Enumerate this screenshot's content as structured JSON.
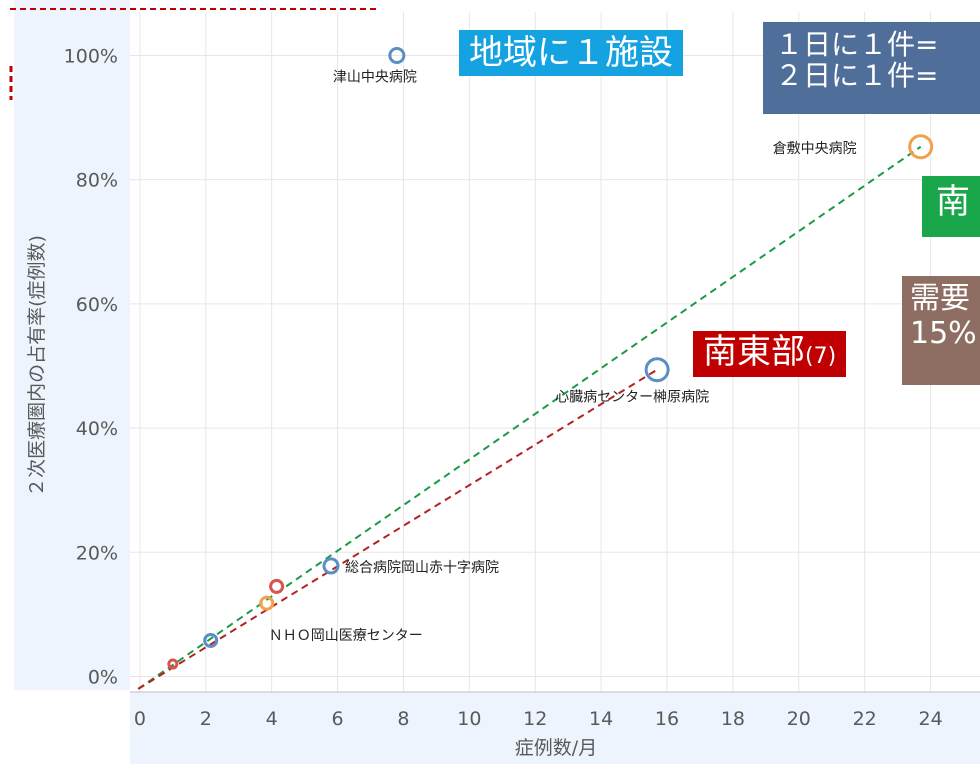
{
  "chart_data": {
    "type": "scatter",
    "xlabel": "症例数/月",
    "ylabel": "２次医療圏内の占有率(症例数)",
    "xlim": [
      -0.3,
      25.5
    ],
    "ylim": [
      -0.025,
      1.07
    ],
    "x_ticks": [
      "0",
      "2",
      "4",
      "6",
      "8",
      "10",
      "12",
      "14",
      "16",
      "18",
      "20",
      "22",
      "24"
    ],
    "y_ticks": [
      "0%",
      "20%",
      "40%",
      "60%",
      "80%",
      "100%"
    ],
    "grid": true,
    "points": [
      {
        "x": 7.8,
        "y": 1.0,
        "size": 7,
        "color": "#5b8ec4",
        "label": "津山中央病院"
      },
      {
        "x": 23.7,
        "y": 0.853,
        "size": 11,
        "color": "#f2a04a",
        "label": "倉敷中央病院"
      },
      {
        "x": 15.7,
        "y": 0.494,
        "size": 11,
        "color": "#5b8ec4",
        "label": "心臓病センター榊原病院"
      },
      {
        "x": 5.8,
        "y": 0.178,
        "size": 7,
        "color": "#5b8ec4",
        "label": "総合病院岡山赤十字病院"
      },
      {
        "x": 3.85,
        "y": 0.118,
        "size": 6,
        "color": "#f2a04a",
        "label": "ＮＨＯ岡山医療センター"
      },
      {
        "x": 4.15,
        "y": 0.145,
        "size": 6,
        "color": "#d9534f",
        "label": ""
      },
      {
        "x": 2.15,
        "y": 0.058,
        "size": 6,
        "color": "#5b8ec4",
        "label": ""
      },
      {
        "x": 1.0,
        "y": 0.02,
        "size": 4,
        "color": "#d9534f",
        "label": ""
      }
    ],
    "trendlines": [
      {
        "color": "#1a9a48",
        "x0": -0.05,
        "y0": -0.02,
        "x1": 23.7,
        "y1": 0.853
      },
      {
        "color": "#b22222",
        "x0": -0.05,
        "y0": -0.02,
        "x1": 15.7,
        "y1": 0.494
      }
    ]
  },
  "annotations": {
    "region": "地域に１施設",
    "freq_line1": "１日に１件=",
    "freq_line2": "２日に１件=",
    "south": "南",
    "demand_line1": "需要",
    "demand_line2": "15%",
    "southeast_main": "南東部",
    "southeast_count": "(7)"
  },
  "colors": {
    "plot_bg": "#ffffff",
    "outer_bg": "#eef4fd",
    "grid": "#e6e6e6",
    "top_dashes": "#c00000"
  }
}
